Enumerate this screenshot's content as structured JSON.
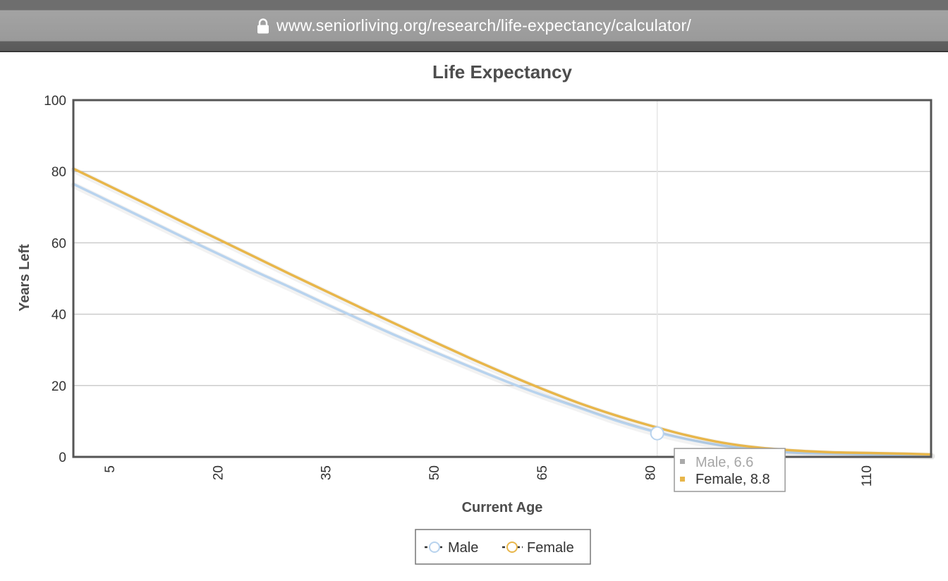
{
  "browser": {
    "url": "www.seniorliving.org/research/life-expectancy/calculator/"
  },
  "colors": {
    "male": "#b8d3ee",
    "female": "#e8b64a",
    "grid": "#cccccc",
    "frame": "#555555"
  },
  "tooltip": {
    "x": 81,
    "male_label": "Male, 6.6",
    "female_label": "Female, 8.8"
  },
  "chart_data": {
    "type": "line",
    "title": "Life Expectancy",
    "xlabel": "Current Age",
    "ylabel": "Years Left",
    "xlim": [
      0,
      119
    ],
    "ylim": [
      0,
      100
    ],
    "xticks": [
      5,
      20,
      35,
      50,
      65,
      80,
      110
    ],
    "yticks": [
      0,
      20,
      40,
      60,
      80,
      100
    ],
    "grid": true,
    "legend_position": "bottom-center",
    "x": [
      0,
      5,
      10,
      15,
      20,
      25,
      30,
      35,
      40,
      45,
      50,
      55,
      60,
      65,
      70,
      75,
      80,
      85,
      90,
      95,
      100,
      105,
      110,
      115,
      119
    ],
    "series": [
      {
        "name": "Male",
        "values": [
          76.5,
          71.6,
          66.7,
          61.8,
          57.0,
          52.2,
          47.6,
          42.9,
          38.3,
          33.8,
          29.5,
          25.3,
          21.2,
          17.4,
          13.9,
          10.4,
          7.4,
          5.0,
          3.2,
          2.0,
          1.2,
          0.9,
          0.7,
          0.6,
          0.5
        ]
      },
      {
        "name": "Female",
        "values": [
          80.8,
          75.9,
          71.0,
          66.0,
          61.1,
          56.2,
          51.3,
          46.5,
          41.7,
          37.0,
          32.3,
          27.7,
          23.3,
          19.1,
          15.2,
          11.8,
          8.8,
          6.1,
          4.0,
          2.6,
          1.8,
          1.3,
          1.1,
          0.9,
          0.7
        ]
      }
    ]
  }
}
